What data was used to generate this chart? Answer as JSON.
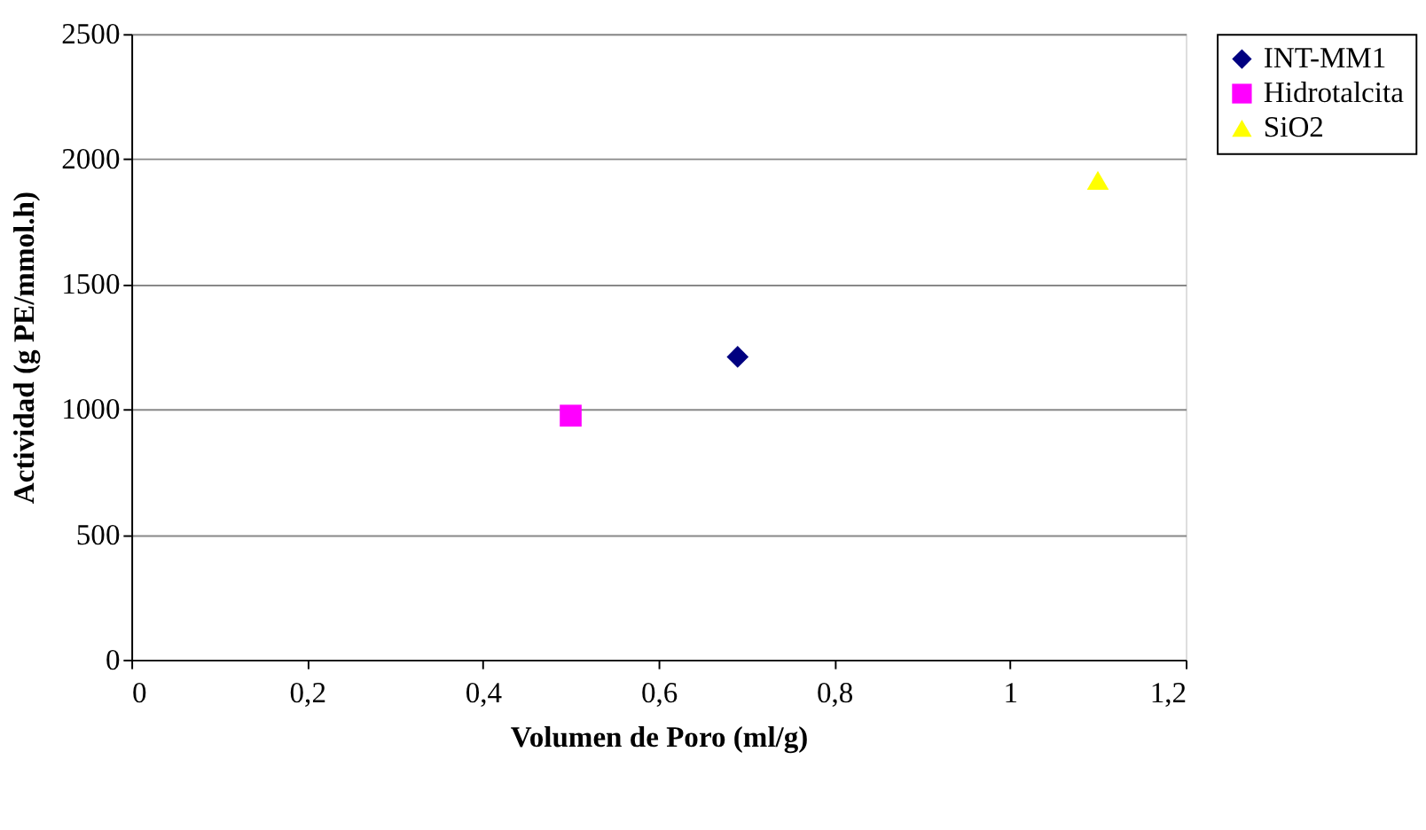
{
  "chart_data": {
    "type": "scatter",
    "xlabel": "Volumen de Poro (ml/g)",
    "ylabel": "Actividad (g PE/mmol.h)",
    "series": [
      {
        "name": "INT-MM1",
        "color": "#000080",
        "marker": "diamond",
        "x": [
          0.69
        ],
        "values": [
          1210
        ]
      },
      {
        "name": "Hidrotalcita",
        "color": "#ff00ff",
        "marker": "square",
        "x": [
          0.5
        ],
        "values": [
          975
        ]
      },
      {
        "name": "SiO2",
        "color": "#ffff00",
        "marker": "triangle",
        "x": [
          1.1
        ],
        "values": [
          1915
        ]
      }
    ],
    "xlim": [
      0,
      1.2
    ],
    "xticks": [
      0,
      {
        "value": 0.2,
        "label": "0,2"
      },
      {
        "value": 0.4,
        "label": "0,4"
      },
      {
        "value": 0.6,
        "label": "0,6"
      },
      {
        "value": 0.8,
        "label": "0,8"
      },
      1,
      {
        "value": 1.2,
        "label": "1,2"
      }
    ],
    "ylim": [
      0,
      2500
    ],
    "yticks": [
      0,
      500,
      1000,
      1500,
      2000,
      2500
    ],
    "grid": "y",
    "legend": "right"
  }
}
